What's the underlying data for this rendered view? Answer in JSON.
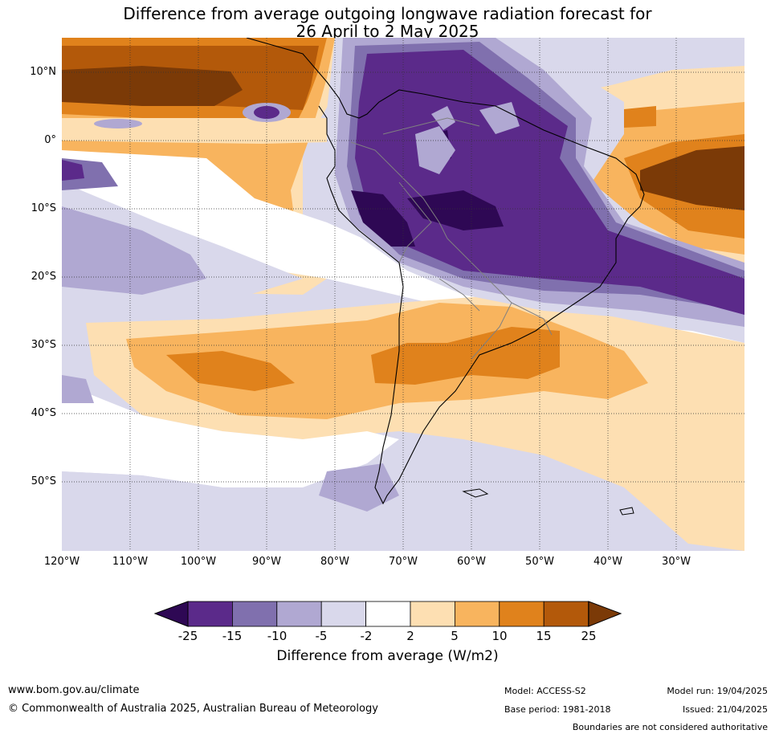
{
  "title": {
    "line1": "Difference from average outgoing longwave radiation forecast for",
    "line2": "26 April to 2 May 2025"
  },
  "map": {
    "lat_labels": [
      "10°N",
      "0°",
      "10°S",
      "20°S",
      "30°S",
      "40°S",
      "50°S"
    ],
    "lon_labels": [
      "120°W",
      "110°W",
      "100°W",
      "90°W",
      "80°W",
      "70°W",
      "60°W",
      "50°W",
      "40°W",
      "30°W"
    ],
    "gridlines": true
  },
  "colorbar": {
    "label": "Difference from average (W/m2)",
    "ticks": [
      "-25",
      "-15",
      "-10",
      "-5",
      "-2",
      "2",
      "5",
      "10",
      "15",
      "25"
    ],
    "colors": [
      "#2e0854",
      "#5b2a8a",
      "#8070ae",
      "#b0a8d2",
      "#d9d8eb",
      "#ffffff",
      "#fddfb2",
      "#f8b45e",
      "#e0821c",
      "#b3590a",
      "#7b3a07"
    ]
  },
  "footer": {
    "website": "www.bom.gov.au/climate",
    "copyright": "© Commonwealth of Australia 2025, Australian Bureau of Meteorology",
    "model": "Model: ACCESS-S2",
    "base_period": "Base period: 1981-2018",
    "model_run": "Model run: 19/04/2025",
    "issued": "Issued: 21/04/2025",
    "disclaimer": "Boundaries are not considered authoritative"
  }
}
